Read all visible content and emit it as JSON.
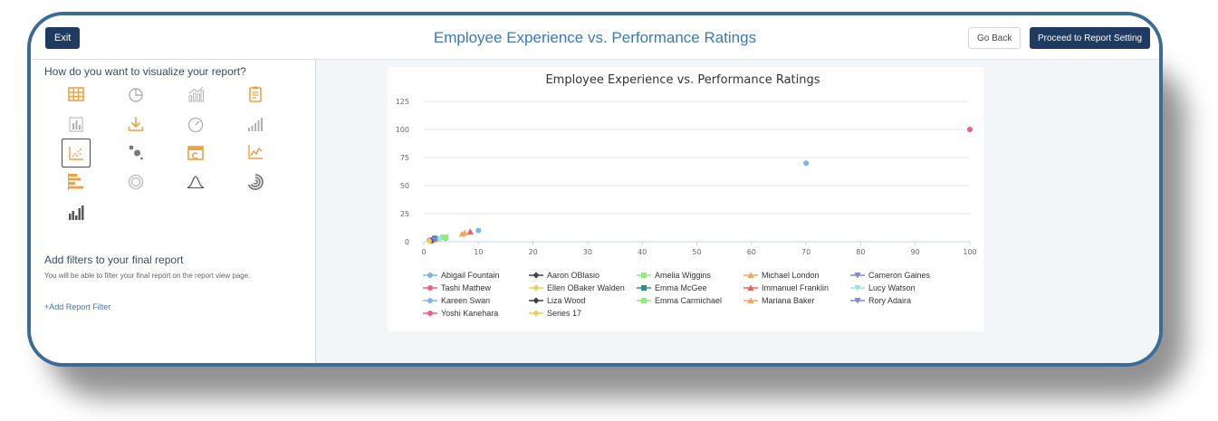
{
  "header": {
    "exit_label": "Exit",
    "title": "Employee Experience vs. Performance Ratings",
    "back_label": "Go Back",
    "proceed_label": "Proceed to Report Setting"
  },
  "sidebar": {
    "question": "How do you want to visualize your report?",
    "icons": [
      {
        "name": "table-icon",
        "color": "#f0a040"
      },
      {
        "name": "pie-chart-icon",
        "color": "#b0b0b0"
      },
      {
        "name": "bar-line-chart-icon",
        "color": "#b0b0b0"
      },
      {
        "name": "clipboard-report-icon",
        "color": "#f0a040"
      },
      {
        "name": "column-chart-icon",
        "color": "#b0b0b0"
      },
      {
        "name": "download-icon",
        "color": "#f0a040"
      },
      {
        "name": "gauge-icon",
        "color": "#b0b0b0"
      },
      {
        "name": "ascending-bars-icon",
        "color": "#b0b0b0"
      },
      {
        "name": "scatter-chart-icon",
        "color": "#f0a040",
        "selected": true
      },
      {
        "name": "bubble-chart-icon",
        "color": "#7a7a7a"
      },
      {
        "name": "calendar-icon",
        "color": "#f0a040"
      },
      {
        "name": "line-chart-icon",
        "color": "#f0a040"
      },
      {
        "name": "horizontal-bar-chart-icon",
        "color": "#f0a040"
      },
      {
        "name": "radial-ring-icon",
        "color": "#b0b0b0"
      },
      {
        "name": "bell-curve-icon",
        "color": "#555555"
      },
      {
        "name": "spiral-gauge-icon",
        "color": "#7a7a7a"
      },
      {
        "name": "histogram-icon",
        "color": "#555555"
      }
    ],
    "filters_title": "Add filters to your final report",
    "filters_note": "You will be able to filter your final report on the report view page.",
    "add_filter_label": "+Add Report Filter"
  },
  "chart_data": {
    "type": "scatter",
    "title": "Employee Experience vs. Performance Ratings",
    "xlabel": "",
    "ylabel": "",
    "xlim": [
      0,
      100
    ],
    "ylim": [
      0,
      125
    ],
    "x_ticks": [
      0,
      10,
      20,
      30,
      40,
      50,
      60,
      70,
      80,
      90,
      100
    ],
    "y_ticks": [
      0,
      25,
      50,
      75,
      100,
      125
    ],
    "grid": true,
    "legend_position": "bottom",
    "series": [
      {
        "name": "Abigail Fountain",
        "color": "#7cb5ec",
        "marker": "circle",
        "points": [
          [
            10,
            10
          ],
          [
            70,
            70
          ]
        ]
      },
      {
        "name": "Aaron OBlasio",
        "color": "#434348",
        "marker": "diamond",
        "points": [
          [
            2,
            2
          ]
        ]
      },
      {
        "name": "Amelia Wiggins",
        "color": "#90ed7d",
        "marker": "square",
        "points": [
          [
            3.5,
            4
          ]
        ]
      },
      {
        "name": "Michael London",
        "color": "#f7a35c",
        "marker": "triangle",
        "points": [
          [
            7.5,
            8
          ]
        ]
      },
      {
        "name": "Cameron Gaines",
        "color": "#8085e9",
        "marker": "triangle-down",
        "points": [
          [
            1.5,
            1.5
          ]
        ]
      },
      {
        "name": "Tashi Mathew",
        "color": "#f15c80",
        "marker": "circle",
        "points": [
          [
            100,
            100
          ]
        ]
      },
      {
        "name": "Ellen OBaker Walden",
        "color": "#e4d354",
        "marker": "diamond",
        "points": [
          [
            2.5,
            2
          ]
        ]
      },
      {
        "name": "Emma McGee",
        "color": "#2b908f",
        "marker": "square",
        "points": [
          [
            2,
            3
          ]
        ]
      },
      {
        "name": "Immanuel Franklin",
        "color": "#f45b5b",
        "marker": "triangle",
        "points": [
          [
            8.5,
            9
          ]
        ]
      },
      {
        "name": "Lucy Watson",
        "color": "#91e8e1",
        "marker": "triangle-down",
        "points": [
          [
            3,
            2.5
          ]
        ]
      },
      {
        "name": "Kareen Swan",
        "color": "#7cb5ec",
        "marker": "circle",
        "points": [
          [
            4,
            3
          ]
        ]
      },
      {
        "name": "Liza Wood",
        "color": "#434348",
        "marker": "diamond",
        "points": [
          [
            1.5,
            1
          ]
        ]
      },
      {
        "name": "Emma Carmichael",
        "color": "#90ed7d",
        "marker": "square",
        "points": [
          [
            4,
            4
          ]
        ]
      },
      {
        "name": "Mariana Baker",
        "color": "#f7a35c",
        "marker": "triangle",
        "points": [
          [
            7,
            7
          ]
        ]
      },
      {
        "name": "Rory Adaira",
        "color": "#8085e9",
        "marker": "triangle-down",
        "points": [
          [
            2,
            1.5
          ]
        ]
      },
      {
        "name": "Yoshi Kanehara",
        "color": "#f15c80",
        "marker": "circle",
        "points": [
          [
            1,
            1
          ]
        ]
      },
      {
        "name": "Series 17",
        "color": "#e4d354",
        "marker": "diamond",
        "points": [
          [
            1,
            0.5
          ]
        ]
      }
    ]
  }
}
